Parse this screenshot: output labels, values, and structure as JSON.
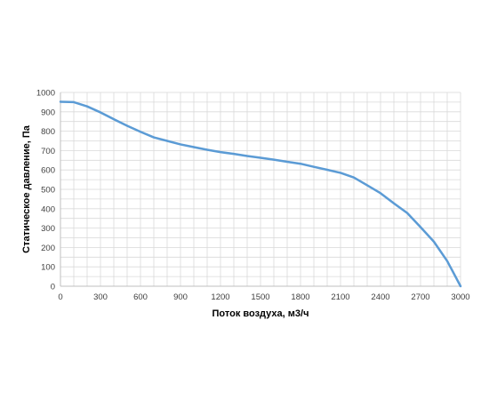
{
  "chart_data": {
    "type": "line",
    "xlabel": "Поток воздуха, м3/ч",
    "ylabel": "Статическое давление, Па",
    "xlim": [
      0,
      3000
    ],
    "ylim": [
      0,
      1000
    ],
    "x_ticks": [
      0,
      300,
      600,
      900,
      1200,
      1500,
      1800,
      2100,
      2400,
      2700,
      3000
    ],
    "y_ticks": [
      0,
      100,
      200,
      300,
      400,
      500,
      600,
      700,
      800,
      900,
      1000
    ],
    "x_tick_labels": [
      "0",
      "300",
      "600",
      "900",
      "1200",
      "1500",
      "1800",
      "2100",
      "2400",
      "2700",
      "3000"
    ],
    "y_tick_labels": [
      "0",
      "100",
      "200",
      "300",
      "400",
      "500",
      "600",
      "700",
      "800",
      "900",
      "1000"
    ],
    "x_minor_step": 100,
    "y_minor_step": 50,
    "grid": true,
    "legend": "none",
    "series": [
      {
        "color": "#5b9bd5",
        "x": [
          0,
          100,
          200,
          300,
          400,
          500,
          600,
          700,
          800,
          900,
          1000,
          1100,
          1200,
          1300,
          1400,
          1500,
          1600,
          1700,
          1800,
          1900,
          2000,
          2100,
          2200,
          2300,
          2400,
          2500,
          2600,
          2700,
          2800,
          2900,
          3000
        ],
        "y": [
          952,
          950,
          928,
          897,
          862,
          828,
          797,
          768,
          750,
          732,
          718,
          704,
          692,
          683,
          672,
          663,
          653,
          642,
          632,
          616,
          601,
          585,
          561,
          521,
          480,
          428,
          378,
          305,
          230,
          130,
          0
        ]
      }
    ],
    "colors": {
      "grid": "#d9d9d9",
      "axis": "#bfbfbf",
      "line": "#5b9bd5"
    }
  }
}
